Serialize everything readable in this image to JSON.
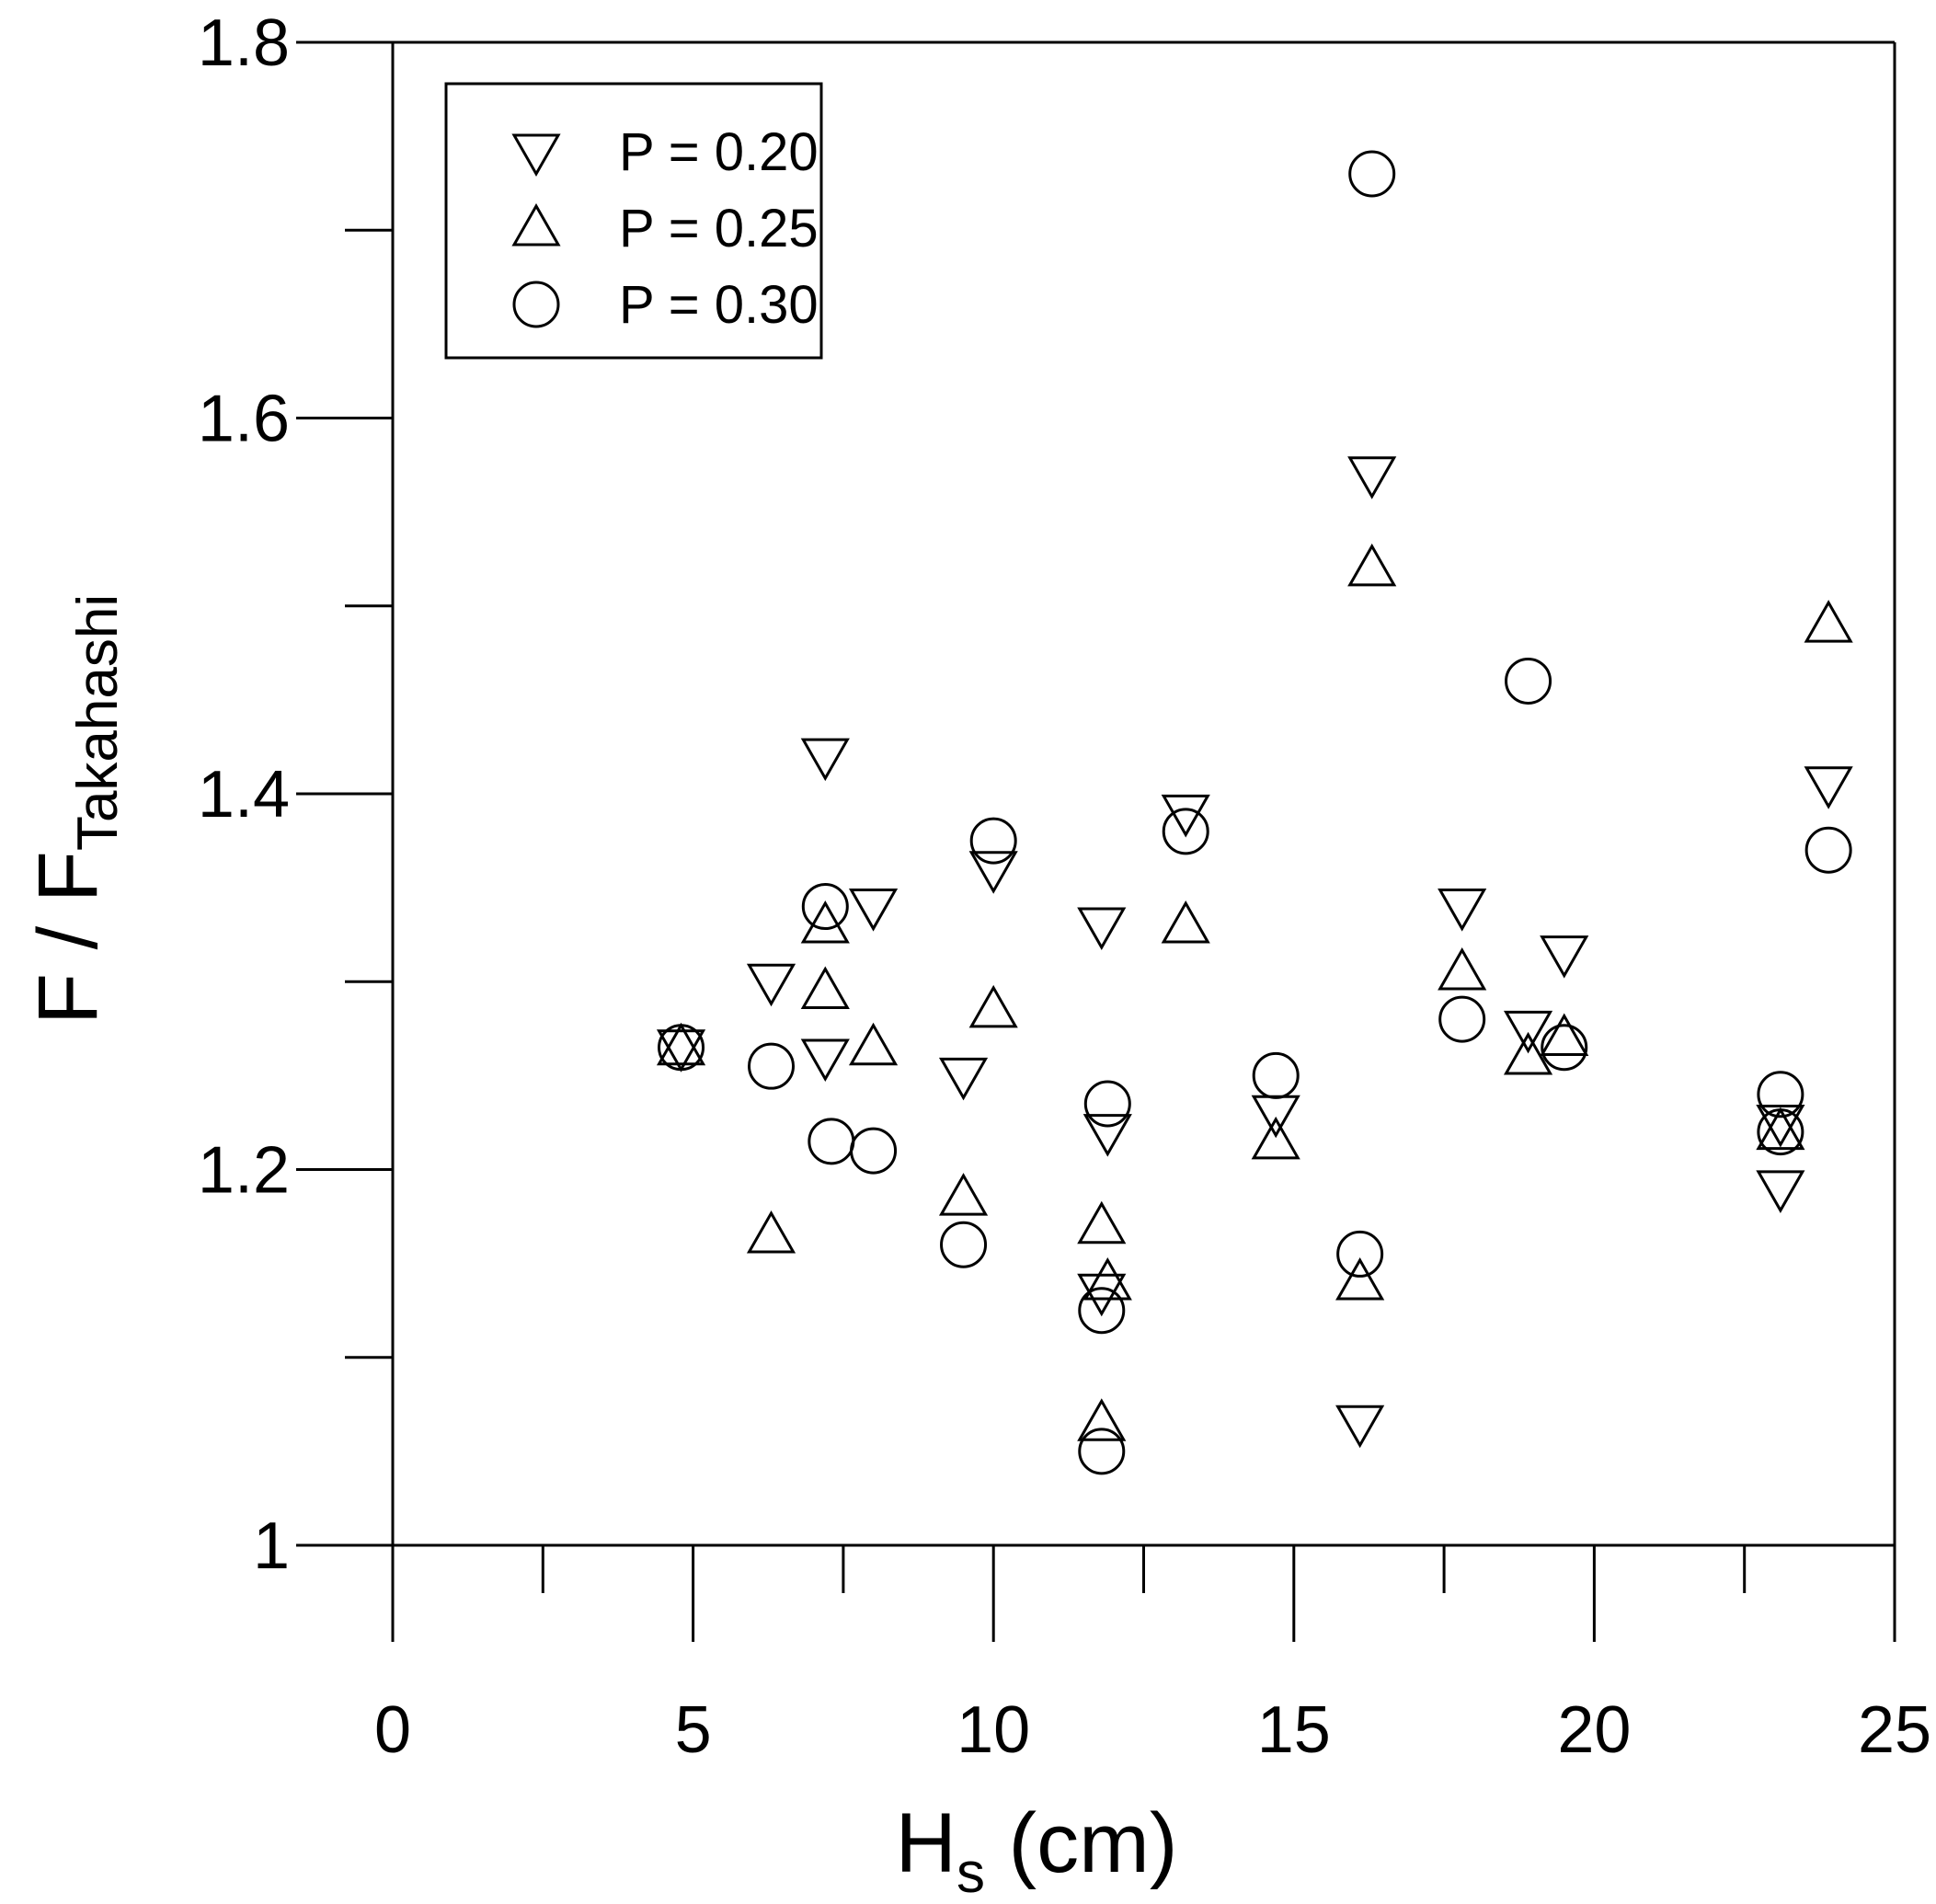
{
  "chart_data": {
    "type": "scatter",
    "title": "",
    "xlabel": {
      "main": "H",
      "sub": "s",
      "unit": " (cm)"
    },
    "ylabel": {
      "main": "F / F",
      "sub": "Takahashi"
    },
    "xlim": [
      0,
      25
    ],
    "ylim": [
      1.0,
      1.8
    ],
    "x_ticks": [
      0,
      5,
      10,
      15,
      20,
      25
    ],
    "x_minor_ticks": [
      2.5,
      7.5,
      12.5,
      17.5,
      22.5
    ],
    "y_ticks": [
      1,
      1.2,
      1.4,
      1.6,
      1.8
    ],
    "y_tick_labels": [
      "1",
      "1.2",
      "1.4",
      "1.6",
      "1.8"
    ],
    "y_minor_ticks": [
      1.1,
      1.3,
      1.5,
      1.7
    ],
    "grid": false,
    "legend_position": "top-left",
    "series": [
      {
        "name": "P = 0.20",
        "marker": "triangle-down",
        "color": "#000000",
        "points": [
          [
            4.8,
            1.265
          ],
          [
            6.3,
            1.3
          ],
          [
            7.2,
            1.42
          ],
          [
            7.2,
            1.26
          ],
          [
            8.0,
            1.34
          ],
          [
            9.5,
            1.25
          ],
          [
            10.0,
            1.36
          ],
          [
            11.8,
            1.33
          ],
          [
            11.9,
            1.22
          ],
          [
            11.8,
            1.135
          ],
          [
            13.2,
            1.39
          ],
          [
            14.7,
            1.23
          ],
          [
            16.3,
            1.57
          ],
          [
            16.1,
            1.065
          ],
          [
            17.8,
            1.34
          ],
          [
            18.9,
            1.275
          ],
          [
            19.5,
            1.315
          ],
          [
            23.1,
            1.225
          ],
          [
            23.1,
            1.19
          ],
          [
            23.9,
            1.405
          ]
        ]
      },
      {
        "name": "P = 0.25",
        "marker": "triangle-up",
        "color": "#000000",
        "points": [
          [
            4.8,
            1.265
          ],
          [
            6.3,
            1.165
          ],
          [
            7.2,
            1.33
          ],
          [
            7.2,
            1.295
          ],
          [
            8.0,
            1.265
          ],
          [
            9.5,
            1.185
          ],
          [
            10.0,
            1.285
          ],
          [
            11.8,
            1.17
          ],
          [
            11.9,
            1.14
          ],
          [
            11.8,
            1.065
          ],
          [
            13.2,
            1.33
          ],
          [
            14.7,
            1.215
          ],
          [
            16.3,
            1.52
          ],
          [
            16.1,
            1.14
          ],
          [
            17.8,
            1.305
          ],
          [
            18.9,
            1.26
          ],
          [
            19.5,
            1.27
          ],
          [
            23.1,
            1.22
          ],
          [
            23.9,
            1.49
          ]
        ]
      },
      {
        "name": "P = 0.30",
        "marker": "circle",
        "color": "#000000",
        "points": [
          [
            4.8,
            1.265
          ],
          [
            6.3,
            1.255
          ],
          [
            7.2,
            1.34
          ],
          [
            7.3,
            1.215
          ],
          [
            8.0,
            1.21
          ],
          [
            9.5,
            1.16
          ],
          [
            10.0,
            1.375
          ],
          [
            11.9,
            1.235
          ],
          [
            11.8,
            1.125
          ],
          [
            11.8,
            1.05
          ],
          [
            13.2,
            1.38
          ],
          [
            14.7,
            1.25
          ],
          [
            16.3,
            1.73
          ],
          [
            16.1,
            1.155
          ],
          [
            17.8,
            1.28
          ],
          [
            18.9,
            1.46
          ],
          [
            19.5,
            1.265
          ],
          [
            23.1,
            1.24
          ],
          [
            23.1,
            1.22
          ],
          [
            23.9,
            1.37
          ]
        ]
      }
    ]
  }
}
